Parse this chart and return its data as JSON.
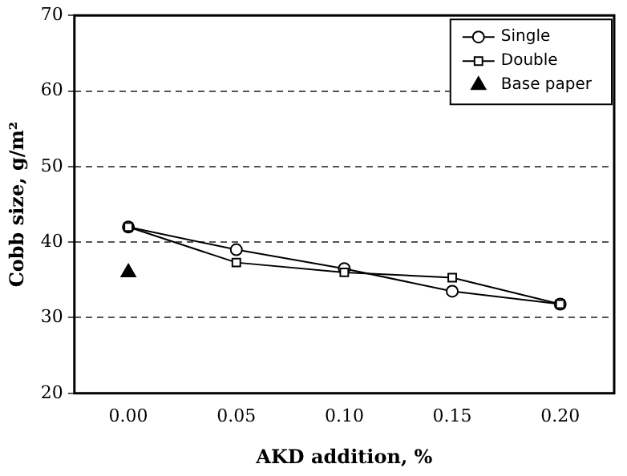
{
  "chart_data": {
    "type": "line",
    "xlabel": "AKD addition, %",
    "ylabel": "Cobb size, g/m²",
    "categories": [
      "0.00",
      "0.05",
      "0.10",
      "0.15",
      "0.20"
    ],
    "series": [
      {
        "name": "Single",
        "color": "#000000",
        "values": [
          42.0,
          39.0,
          36.5,
          33.5,
          31.8
        ],
        "marker": "circle"
      },
      {
        "name": "Double",
        "color": "#000000",
        "values": [
          42.0,
          37.3,
          36.0,
          35.3,
          31.8
        ],
        "marker": "square"
      },
      {
        "name": "Base paper",
        "type": "scatter",
        "color": "#000000",
        "values": [
          36,
          null,
          null,
          null,
          null
        ],
        "marker": "triangle"
      }
    ],
    "ylim": [
      20,
      70
    ],
    "yticks": [
      20,
      30,
      40,
      50,
      60,
      70
    ],
    "grid": "y",
    "legend": "top right",
    "line_style": "solid"
  }
}
